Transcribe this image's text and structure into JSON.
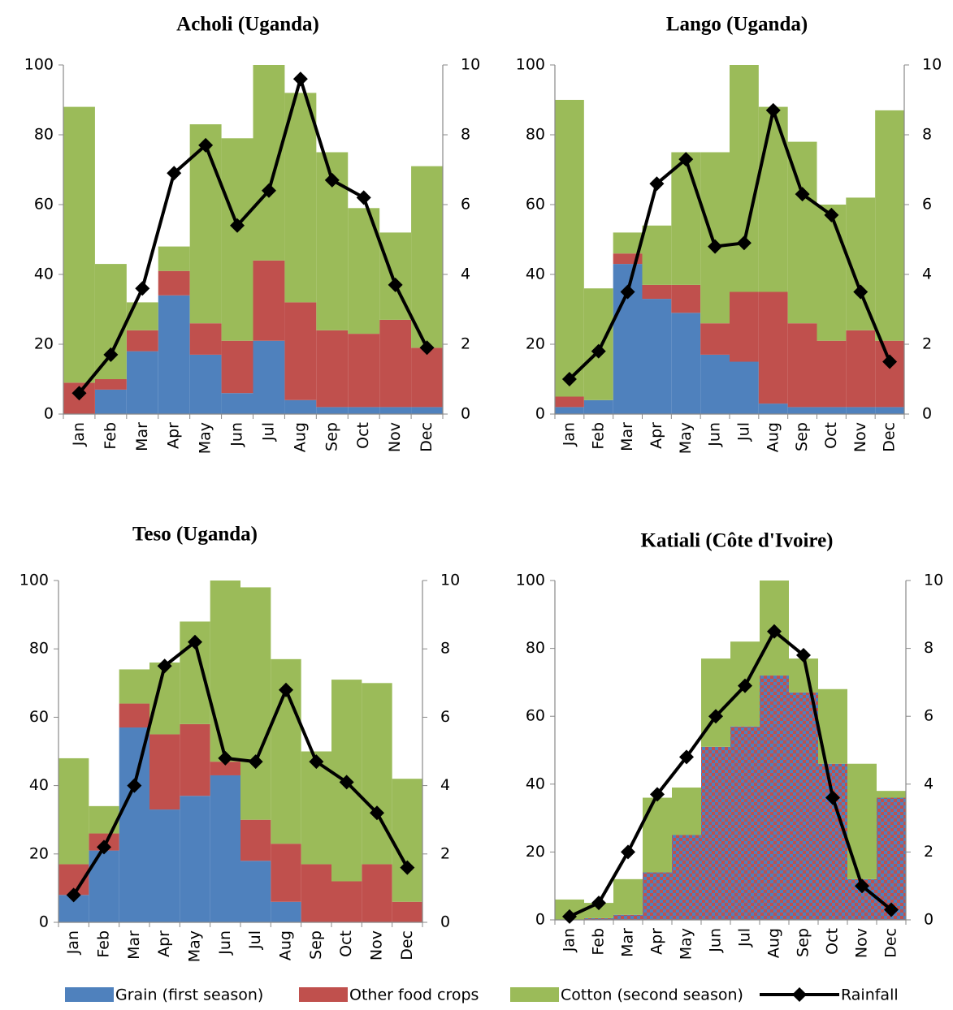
{
  "chart_data": [
    {
      "type": "bar",
      "stacked": true,
      "title": "Acholi (Uganda)",
      "categories": [
        "Jan",
        "Feb",
        "Mar",
        "Apr",
        "May",
        "Jun",
        "Jul",
        "Aug",
        "Sep",
        "Oct",
        "Nov",
        "Dec"
      ],
      "ylim": [
        0,
        100
      ],
      "yticks": [
        0,
        20,
        40,
        60,
        80,
        100
      ],
      "y2lim": [
        0,
        10
      ],
      "y2ticks": [
        0,
        2,
        4,
        6,
        8,
        10
      ],
      "series": [
        {
          "name": "Grain (first season)",
          "color": "#4f81bd",
          "values": [
            0,
            7,
            18,
            34,
            17,
            6,
            21,
            4,
            2,
            2,
            2,
            2
          ]
        },
        {
          "name": "Other food crops",
          "color": "#c0504d",
          "values": [
            9,
            3,
            6,
            7,
            9,
            15,
            23,
            28,
            22,
            21,
            25,
            17
          ]
        },
        {
          "name": "Cotton (second season)",
          "color": "#9bbb59",
          "values": [
            79,
            33,
            8,
            7,
            57,
            58,
            56,
            60,
            51,
            36,
            25,
            52
          ]
        },
        {
          "name": "Rainfall",
          "color": "#000000",
          "axis": "y2",
          "kind": "line",
          "marker": "diamond",
          "values": [
            0.6,
            1.7,
            3.6,
            6.9,
            7.7,
            5.4,
            6.4,
            9.6,
            6.7,
            6.2,
            3.7,
            1.9
          ]
        }
      ]
    },
    {
      "type": "bar",
      "stacked": true,
      "title": "Lango (Uganda)",
      "categories": [
        "Jan",
        "Feb",
        "Mar",
        "Apr",
        "May",
        "Jun",
        "Jul",
        "Aug",
        "Sep",
        "Oct",
        "Nov",
        "Dec"
      ],
      "ylim": [
        0,
        100
      ],
      "yticks": [
        0,
        20,
        40,
        60,
        80,
        100
      ],
      "y2lim": [
        0,
        10
      ],
      "y2ticks": [
        0,
        2,
        4,
        6,
        8,
        10
      ],
      "series": [
        {
          "name": "Grain (first season)",
          "color": "#4f81bd",
          "values": [
            2,
            4,
            43,
            33,
            29,
            17,
            15,
            3,
            2,
            2,
            2,
            2
          ]
        },
        {
          "name": "Other food crops",
          "color": "#c0504d",
          "values": [
            3,
            0,
            3,
            4,
            8,
            9,
            20,
            32,
            24,
            19,
            22,
            19
          ]
        },
        {
          "name": "Cotton (second season)",
          "color": "#9bbb59",
          "values": [
            85,
            32,
            6,
            17,
            38,
            49,
            65,
            53,
            52,
            39,
            38,
            66
          ]
        },
        {
          "name": "Rainfall",
          "color": "#000000",
          "axis": "y2",
          "kind": "line",
          "marker": "diamond",
          "values": [
            1.0,
            1.8,
            3.5,
            6.6,
            7.3,
            4.8,
            4.9,
            8.7,
            6.3,
            5.7,
            3.5,
            1.5
          ]
        }
      ]
    },
    {
      "type": "bar",
      "stacked": true,
      "title": "Teso (Uganda)",
      "categories": [
        "Jan",
        "Feb",
        "Mar",
        "Apr",
        "May",
        "Jun",
        "Jul",
        "Aug",
        "Sep",
        "Oct",
        "Nov",
        "Dec"
      ],
      "ylim": [
        0,
        100
      ],
      "yticks": [
        0,
        20,
        40,
        60,
        80,
        100
      ],
      "y2lim": [
        0,
        10
      ],
      "y2ticks": [
        0,
        2,
        4,
        6,
        8,
        10
      ],
      "series": [
        {
          "name": "Grain (first season)",
          "color": "#4f81bd",
          "values": [
            8,
            21,
            57,
            33,
            37,
            43,
            18,
            6,
            0,
            0,
            0,
            0
          ]
        },
        {
          "name": "Other food crops",
          "color": "#c0504d",
          "values": [
            9,
            5,
            7,
            22,
            21,
            4,
            12,
            17,
            17,
            12,
            17,
            6
          ]
        },
        {
          "name": "Cotton (second season)",
          "color": "#9bbb59",
          "values": [
            31,
            8,
            10,
            21,
            30,
            53,
            68,
            54,
            33,
            59,
            53,
            36
          ]
        },
        {
          "name": "Rainfall",
          "color": "#000000",
          "axis": "y2",
          "kind": "line",
          "marker": "diamond",
          "values": [
            0.8,
            2.2,
            4.0,
            7.5,
            8.2,
            4.8,
            4.7,
            6.8,
            4.7,
            4.1,
            3.2,
            1.6
          ]
        }
      ]
    },
    {
      "type": "bar",
      "stacked": true,
      "title": "Katiali (Côte d'Ivoire)",
      "categories": [
        "Jan",
        "Feb",
        "Mar",
        "Apr",
        "May",
        "Jun",
        "Jul",
        "Aug",
        "Sep",
        "Oct",
        "Nov",
        "Dec"
      ],
      "ylim": [
        0,
        100
      ],
      "yticks": [
        0,
        20,
        40,
        60,
        80,
        100
      ],
      "y2lim": [
        0,
        10
      ],
      "y2ticks": [
        0,
        2,
        4,
        6,
        8,
        10
      ],
      "series": [
        {
          "color": "#c0504d",
          "pattern_color": "#4f81bd",
          "values": [
            0,
            0.5,
            1.5,
            14,
            25,
            51,
            57,
            72,
            67,
            46,
            12,
            36
          ]
        },
        {
          "name": "Cotton (second season)",
          "color": "#9bbb59",
          "values": [
            6,
            4.5,
            10.5,
            22,
            14,
            26,
            25,
            28,
            10,
            22,
            34,
            2
          ]
        },
        {
          "name": "Rainfall",
          "color": "#000000",
          "axis": "y2",
          "kind": "line",
          "marker": "diamond",
          "values": [
            0.1,
            0.5,
            2.0,
            3.7,
            4.8,
            6.0,
            6.9,
            8.5,
            7.8,
            3.6,
            1.0,
            0.3
          ]
        }
      ]
    }
  ]
}
